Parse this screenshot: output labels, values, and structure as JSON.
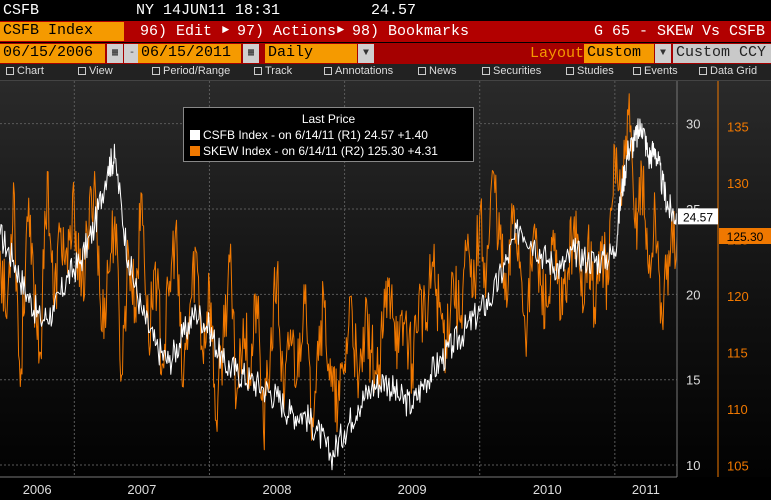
{
  "topbar": {
    "ticker": "CSFB",
    "exchange_date_time": "NY 14JUN11 18:31",
    "last_value": "24.57"
  },
  "menubar": {
    "security": "CSFB Index",
    "edit_label": "96) Edit",
    "actions_label": "97) Actions",
    "bookmarks_label": "98) Bookmarks",
    "page_title": "G 65 - SKEW Vs CSFB"
  },
  "datebar": {
    "start_date": "06/15/2006",
    "end_date": "06/15/2011",
    "periodicity": "Daily",
    "layout_label": "Layout",
    "layout_value": "Custom",
    "currency": "Custom CCY"
  },
  "toolbar": {
    "items": [
      "Chart",
      "View",
      "Period/Range",
      "Track",
      "Annotations",
      "News",
      "Securities",
      "Studies",
      "Events",
      "Data Grid"
    ]
  },
  "legend": {
    "title": "Last Price",
    "series": [
      {
        "text": "CSFB Index -   on 6/14/11  (R1)  24.57  +1.40",
        "color": "#ffffff"
      },
      {
        "text": "SKEW Index -   on 6/14/11  (R2) 125.30  +4.31",
        "color": "#f07800"
      }
    ]
  },
  "colors": {
    "csfb": "#ffffff",
    "skew": "#f07800",
    "accent": "#f59a00",
    "menu_red": "#b20000"
  },
  "chart_data": {
    "type": "line",
    "title": "G 65 - SKEW Vs CSFB",
    "x_labels": [
      "2006",
      "2007",
      "2008",
      "2009",
      "2010",
      "2011"
    ],
    "x_range": [
      2006.45,
      2011.46
    ],
    "axis_r1": {
      "ticks": [
        10,
        15,
        20,
        25,
        30
      ],
      "range": [
        9.3,
        32.5
      ]
    },
    "axis_r2": {
      "ticks": [
        105,
        110,
        115,
        120,
        125,
        130,
        135
      ],
      "range": [
        104,
        139
      ]
    },
    "last_value_labels": {
      "csfb": "24.57",
      "skew": "125.30"
    },
    "series": [
      {
        "name": "CSFB Index",
        "axis": "R1",
        "color": "#ffffff",
        "x": [
          2006.45,
          2006.55,
          2006.65,
          2006.75,
          2006.85,
          2006.95,
          2007.05,
          2007.15,
          2007.25,
          2007.3,
          2007.4,
          2007.5,
          2007.6,
          2007.7,
          2007.8,
          2007.9,
          2008.0,
          2008.1,
          2008.2,
          2008.3,
          2008.4,
          2008.5,
          2008.6,
          2008.7,
          2008.8,
          2008.9,
          2009.0,
          2009.1,
          2009.2,
          2009.3,
          2009.4,
          2009.5,
          2009.6,
          2009.7,
          2009.8,
          2009.9,
          2010.0,
          2010.1,
          2010.2,
          2010.3,
          2010.4,
          2010.5,
          2010.6,
          2010.7,
          2010.8,
          2010.9,
          2011.0,
          2011.05,
          2011.1,
          2011.15,
          2011.2,
          2011.25,
          2011.3,
          2011.35,
          2011.4,
          2011.46
        ],
        "values": [
          23.5,
          22,
          20,
          18.5,
          19,
          21,
          22,
          24,
          27.5,
          28,
          22,
          19,
          17,
          16,
          17.5,
          19,
          18,
          16,
          15.5,
          15,
          14.5,
          14,
          13,
          13,
          12,
          10.5,
          12,
          13.5,
          14.5,
          15,
          14,
          13.5,
          15,
          16,
          17,
          18,
          19,
          20,
          22,
          24,
          23,
          22,
          21.5,
          22.5,
          22,
          22,
          22.5,
          26,
          28.5,
          29,
          30,
          28,
          28.5,
          26.5,
          25,
          24.57
        ]
      },
      {
        "name": "SKEW Index",
        "axis": "R2",
        "color": "#f07800",
        "x": [
          2006.45,
          2006.5,
          2006.55,
          2006.6,
          2006.65,
          2006.7,
          2006.75,
          2006.8,
          2006.85,
          2006.9,
          2006.95,
          2007.0,
          2007.05,
          2007.1,
          2007.15,
          2007.2,
          2007.25,
          2007.3,
          2007.35,
          2007.4,
          2007.45,
          2007.5,
          2007.55,
          2007.6,
          2007.65,
          2007.7,
          2007.75,
          2007.8,
          2007.85,
          2007.9,
          2007.95,
          2008.0,
          2008.05,
          2008.1,
          2008.15,
          2008.2,
          2008.25,
          2008.3,
          2008.35,
          2008.4,
          2008.45,
          2008.5,
          2008.55,
          2008.6,
          2008.65,
          2008.7,
          2008.75,
          2008.8,
          2008.85,
          2008.9,
          2008.95,
          2009.0,
          2009.05,
          2009.1,
          2009.15,
          2009.2,
          2009.25,
          2009.3,
          2009.35,
          2009.4,
          2009.45,
          2009.5,
          2009.55,
          2009.6,
          2009.65,
          2009.7,
          2009.75,
          2009.8,
          2009.85,
          2009.9,
          2009.95,
          2010.0,
          2010.05,
          2010.1,
          2010.15,
          2010.2,
          2010.25,
          2010.3,
          2010.35,
          2010.4,
          2010.45,
          2010.5,
          2010.55,
          2010.6,
          2010.65,
          2010.7,
          2010.75,
          2010.8,
          2010.85,
          2010.9,
          2010.95,
          2011.0,
          2011.05,
          2011.1,
          2011.15,
          2011.2,
          2011.25,
          2011.3,
          2011.35,
          2011.4,
          2011.46
        ],
        "values": [
          124,
          118,
          130,
          112,
          127,
          121,
          115,
          131,
          119,
          126,
          122,
          128,
          120,
          125,
          131,
          117,
          122,
          127,
          113,
          124,
          119,
          129,
          116,
          123,
          114,
          120,
          126,
          112,
          118,
          124,
          115,
          121,
          109,
          116,
          123,
          111,
          118,
          113,
          120,
          108,
          115,
          122,
          110,
          117,
          113,
          121,
          109,
          116,
          119,
          112,
          110,
          114,
          120,
          111,
          117,
          115,
          112,
          119,
          121,
          115,
          118,
          114,
          120,
          117,
          123,
          119,
          116,
          122,
          118,
          124,
          120,
          127,
          122,
          131,
          125,
          119,
          128,
          123,
          117,
          126,
          121,
          119,
          124,
          118,
          122,
          127,
          120,
          125,
          119,
          124,
          121,
          133,
          128,
          136,
          126,
          131,
          122,
          127,
          118,
          124,
          125.3
        ]
      }
    ]
  }
}
